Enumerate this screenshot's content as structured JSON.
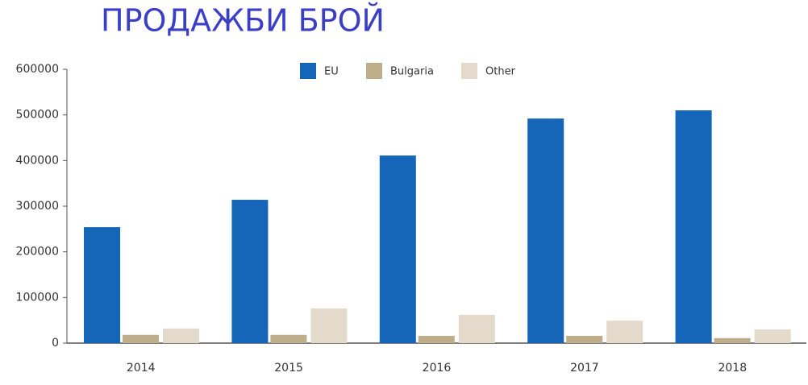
{
  "chart_data": {
    "type": "bar",
    "title": "ПРОДАЖБИ БРОЙ",
    "categories": [
      "2014",
      "2015",
      "2016",
      "2017",
      "2018"
    ],
    "series": [
      {
        "name": "EU",
        "color": "#1565b8",
        "values": [
          254000,
          314000,
          411000,
          492000,
          510000
        ]
      },
      {
        "name": "Bulgaria",
        "color": "#bfae8a",
        "values": [
          18000,
          18000,
          16000,
          16000,
          11000
        ]
      },
      {
        "name": "Other",
        "color": "#e3dacb",
        "values": [
          32000,
          76000,
          62000,
          49000,
          30000
        ]
      }
    ],
    "ylim": [
      0,
      600000
    ],
    "yticks": [
      0,
      100000,
      200000,
      300000,
      400000,
      500000,
      600000
    ],
    "legend": "top"
  }
}
